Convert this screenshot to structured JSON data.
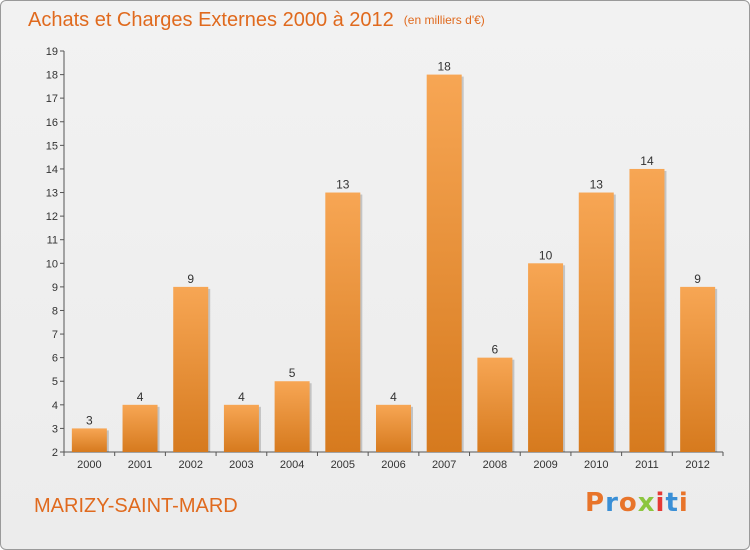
{
  "header": {
    "title": "Achats et Charges Externes 2000 à 2012",
    "unit": "(en milliers d'€)"
  },
  "footer": {
    "commune": "MARIZY-SAINT-MARD",
    "brand": "Proxiti",
    "brand_colors": [
      "#e8742a",
      "#3a8fd6",
      "#e8742a",
      "#8cc63f",
      "#e53935",
      "#3a8fd6",
      "#e8742a"
    ]
  },
  "colors": {
    "bar_top": "#f7a654",
    "bar_bottom": "#d67a1e",
    "title": "#e06a1e",
    "axis": "#555555"
  },
  "chart_data": {
    "type": "bar",
    "title": "Achats et Charges Externes 2000 à 2012",
    "subtitle": "(en milliers d'€)",
    "categories": [
      "2000",
      "2001",
      "2002",
      "2003",
      "2004",
      "2005",
      "2006",
      "2007",
      "2008",
      "2009",
      "2010",
      "2011",
      "2012"
    ],
    "values": [
      3,
      4,
      9,
      4,
      5,
      13,
      4,
      18,
      6,
      10,
      13,
      14,
      9
    ],
    "ylim": [
      2,
      19
    ],
    "yticks": [
      2,
      3,
      4,
      5,
      6,
      7,
      8,
      9,
      10,
      11,
      12,
      13,
      14,
      15,
      16,
      17,
      18,
      19
    ],
    "grid": false,
    "data_labels": true
  }
}
